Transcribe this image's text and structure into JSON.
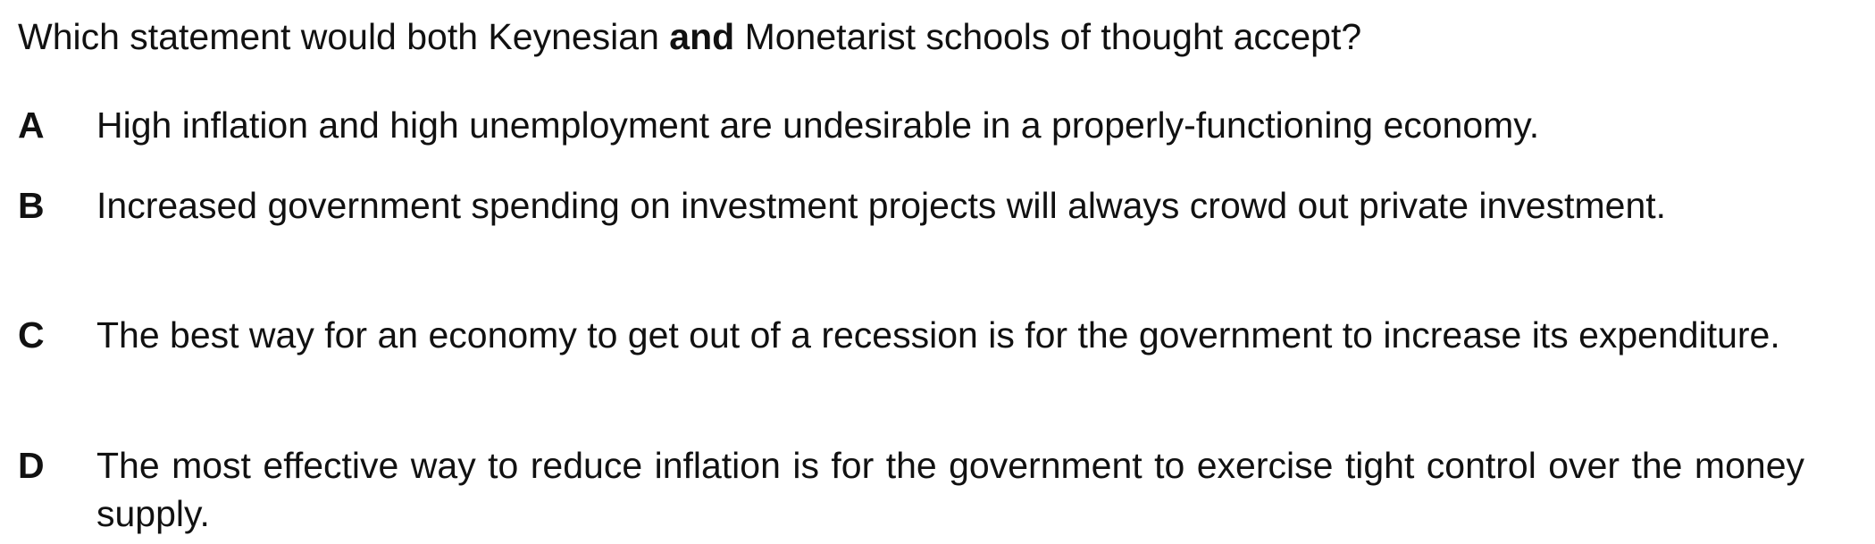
{
  "question": {
    "before": "Which statement would both Keynesian ",
    "emphasis": "and",
    "after": " Monetarist schools of thought accept?"
  },
  "options": [
    {
      "letter": "A",
      "text": "High inflation and high unemployment are undesirable in a properly-functioning economy."
    },
    {
      "letter": "B",
      "text": "Increased government spending on investment projects will always crowd out private investment."
    },
    {
      "letter": "C",
      "text": "The best way for an economy to get out of a recession is for the government to increase its expenditure."
    },
    {
      "letter": "D",
      "text": "The most effective way to reduce inflation is for the government to exercise tight control over the money supply."
    }
  ]
}
